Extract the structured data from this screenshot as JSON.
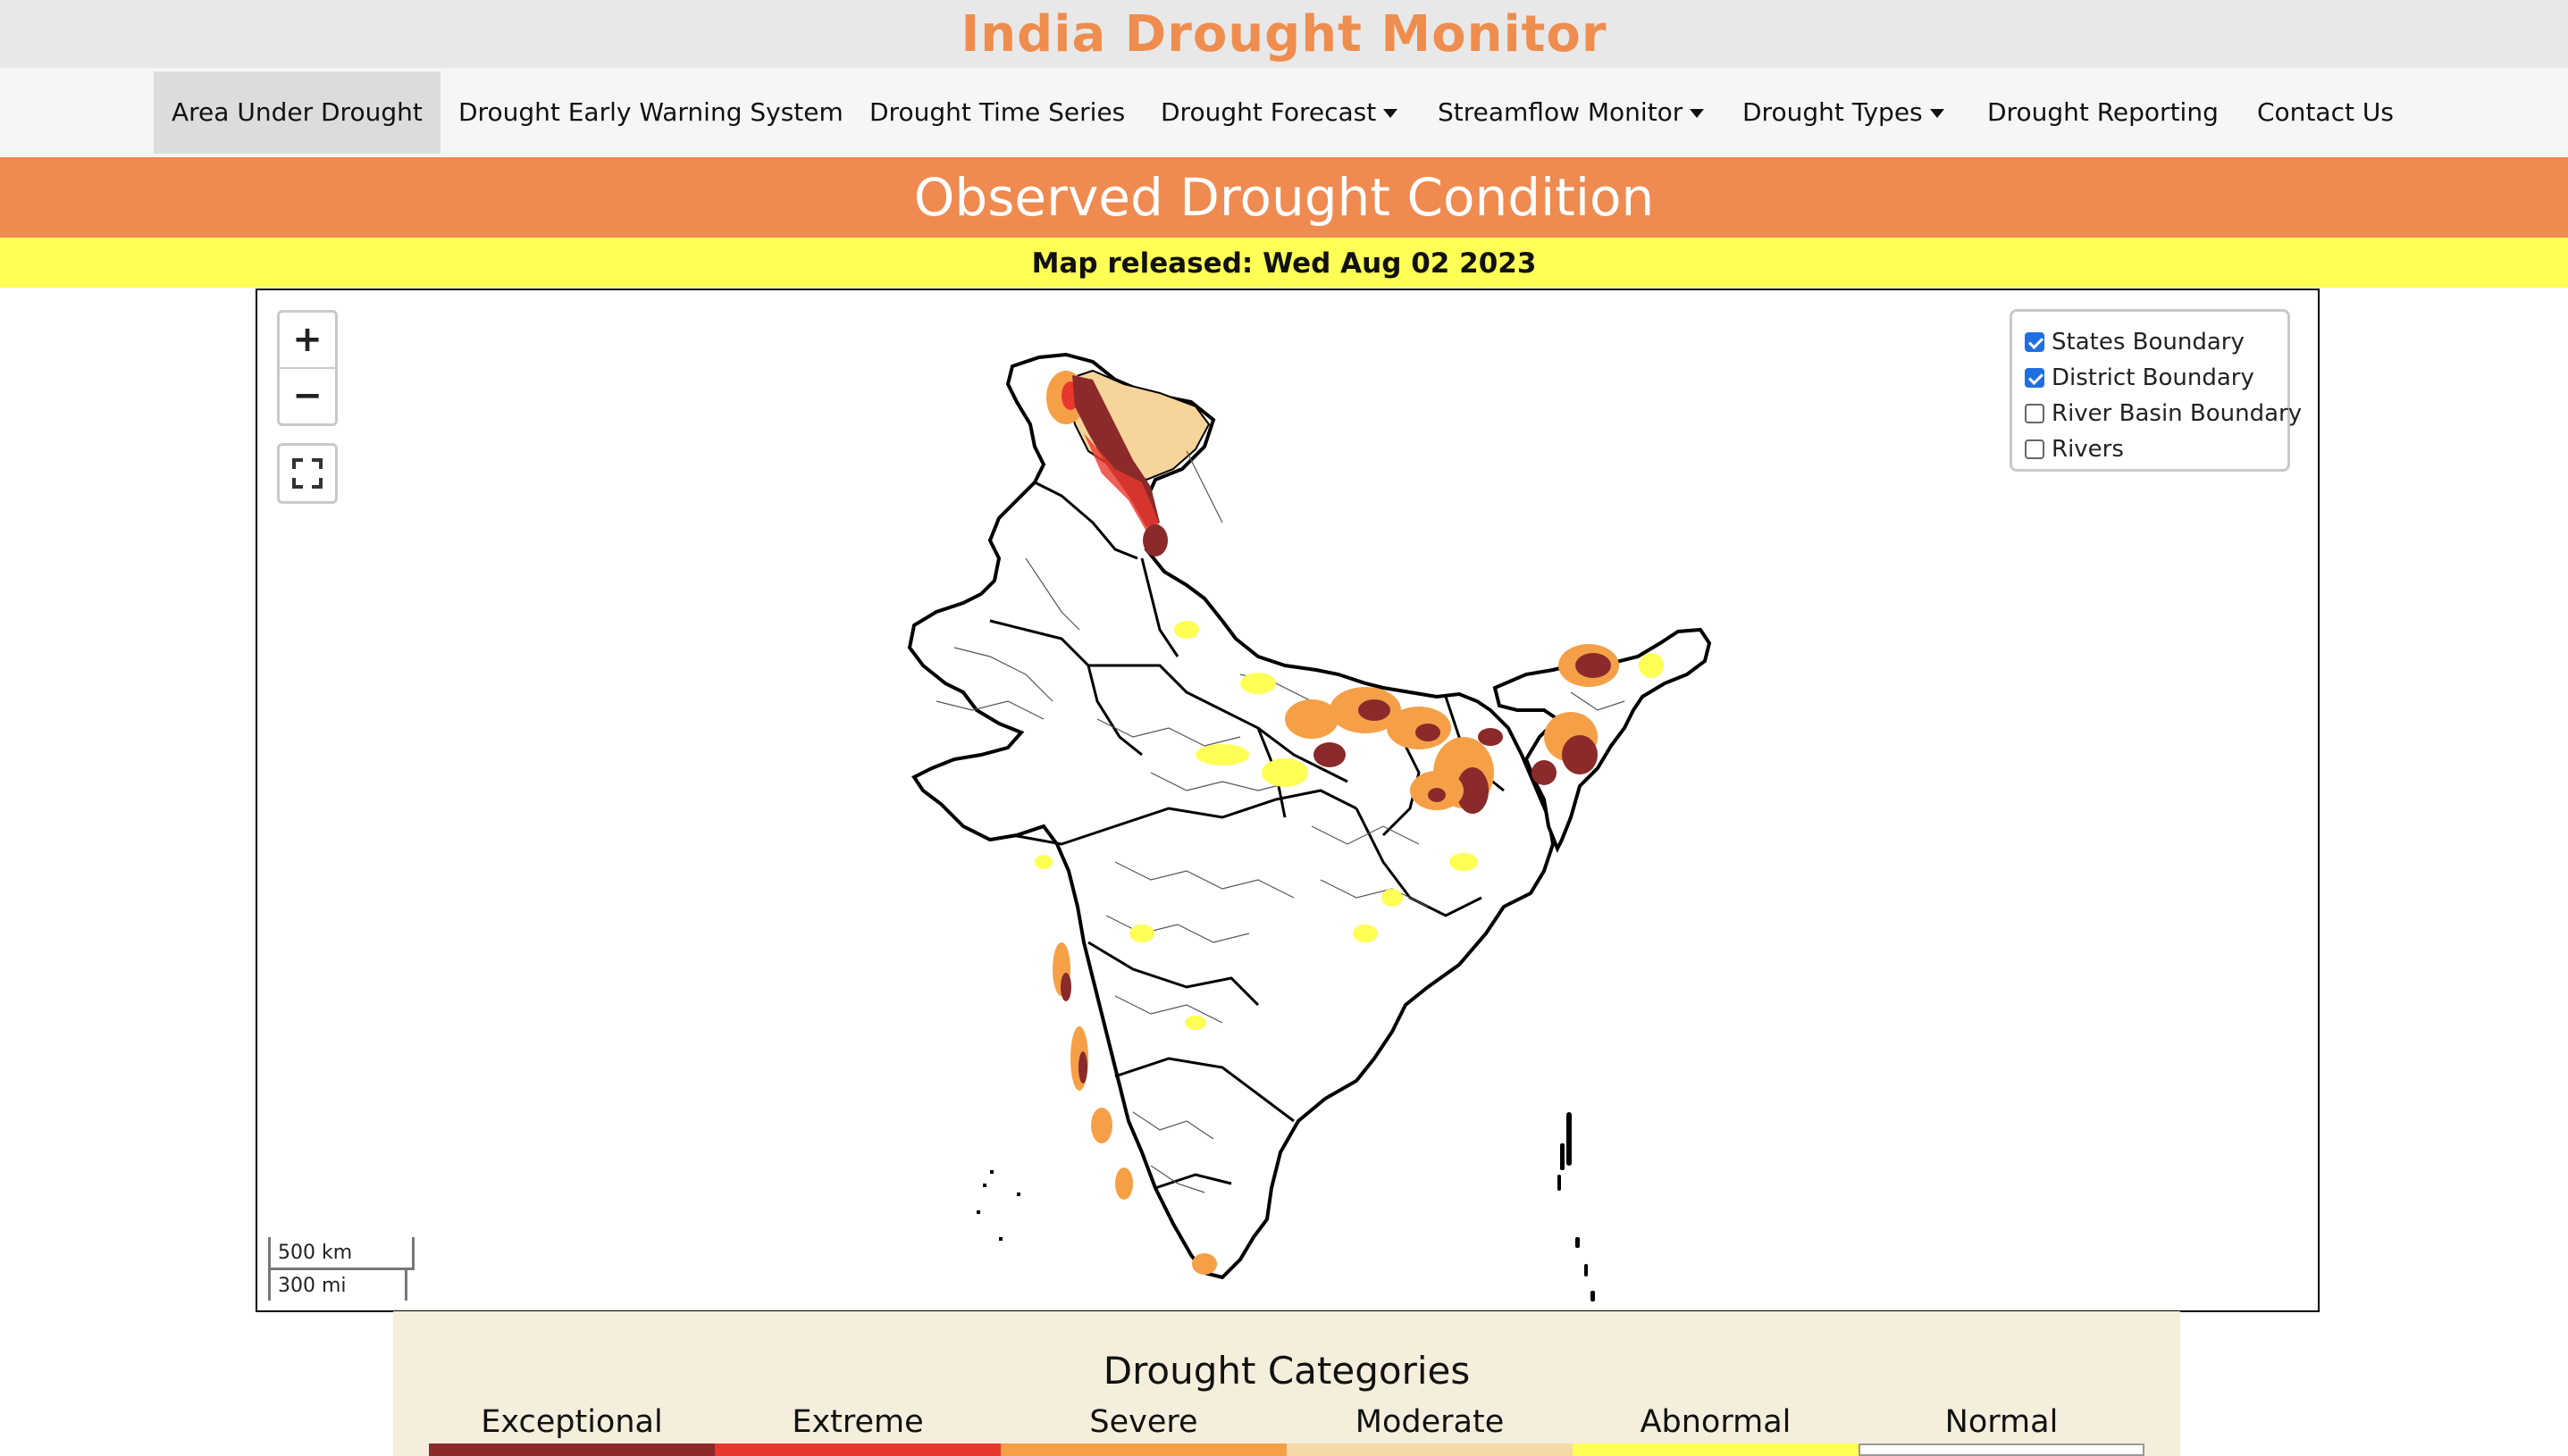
{
  "site": {
    "title": "India Drought Monitor"
  },
  "nav": {
    "items": [
      {
        "label": "Area Under Drought",
        "active": true,
        "dropdown": false
      },
      {
        "label": "Drought Early Warning System",
        "active": false,
        "dropdown": false
      },
      {
        "label": "Drought Time Series",
        "active": false,
        "dropdown": false
      },
      {
        "label": "Drought Forecast",
        "active": false,
        "dropdown": true
      },
      {
        "label": "Streamflow Monitor",
        "active": false,
        "dropdown": true
      },
      {
        "label": "Drought Types",
        "active": false,
        "dropdown": true
      },
      {
        "label": "Drought Reporting",
        "active": false,
        "dropdown": false
      },
      {
        "label": "Contact Us",
        "active": false,
        "dropdown": false
      }
    ]
  },
  "banner": {
    "title": "Observed Drought Condition"
  },
  "release": {
    "text": "Map released: Wed Aug 02 2023"
  },
  "map": {
    "zoom_in": "+",
    "zoom_out": "−",
    "fullscreen_icon": "fullscreen-icon",
    "layers": [
      {
        "label": "States Boundary",
        "checked": true
      },
      {
        "label": "District Boundary",
        "checked": true
      },
      {
        "label": "River Basin Boundary",
        "checked": false
      },
      {
        "label": "Rivers",
        "checked": false
      }
    ],
    "scale": {
      "km": "500 km",
      "mi": "300 mi"
    }
  },
  "legend": {
    "title": "Drought Categories",
    "categories": [
      {
        "label": "Exceptional",
        "color": "#8b2a2a"
      },
      {
        "label": "Extreme",
        "color": "#e8382e"
      },
      {
        "label": "Severe",
        "color": "#f5a047"
      },
      {
        "label": "Moderate",
        "color": "#f6d9a8"
      },
      {
        "label": "Abnormal",
        "color": "#ffff55"
      },
      {
        "label": "Normal",
        "color": "#ffffff"
      }
    ]
  }
}
